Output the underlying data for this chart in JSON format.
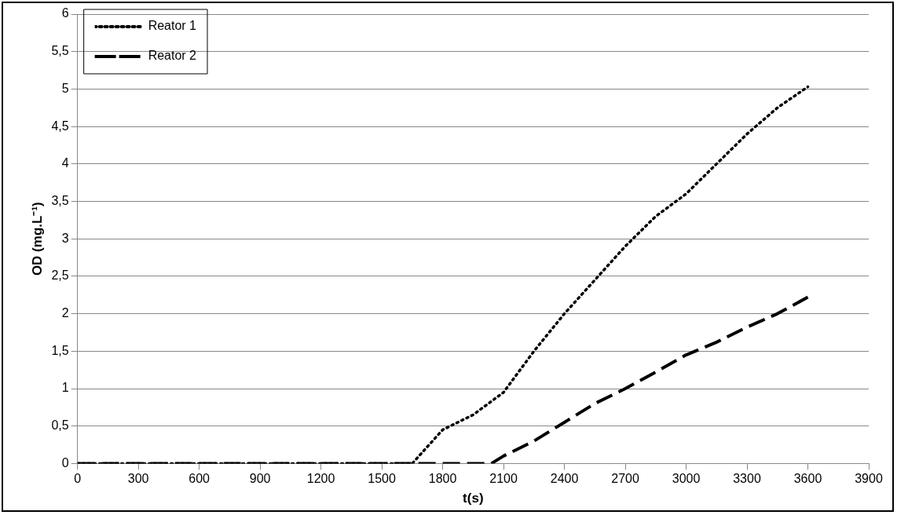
{
  "chart_data": {
    "type": "line",
    "xlabel": "t(s)",
    "ylabel": "OD (mg.L⁻¹)",
    "xlim": [
      0,
      3900
    ],
    "xticks": [
      0,
      300,
      600,
      900,
      1200,
      1500,
      1800,
      2100,
      2400,
      2700,
      3000,
      3300,
      3600,
      3900
    ],
    "ylim": [
      0,
      6
    ],
    "yticks": [
      0,
      {
        "value": 0.5,
        "label": "0,5"
      },
      1,
      {
        "value": 1.5,
        "label": "1,5"
      },
      2,
      {
        "value": 2.5,
        "label": "2,5"
      },
      3,
      {
        "value": 3.5,
        "label": "3,5"
      },
      4,
      {
        "value": 4.5,
        "label": "4,5"
      },
      5,
      {
        "value": 5.5,
        "label": "5,5"
      },
      6
    ],
    "grid": "y",
    "legend": "top left",
    "marker": "none",
    "series": [
      {
        "name": "Reator 1",
        "color": "#000000",
        "line_style": "dotted",
        "x": [
          0,
          1650,
          1800,
          1950,
          2100,
          2250,
          2400,
          2550,
          2700,
          2850,
          3000,
          3150,
          3300,
          3450,
          3600
        ],
        "values": [
          0,
          0,
          0.45,
          0.65,
          0.95,
          1.5,
          2.0,
          2.45,
          2.9,
          3.3,
          3.6,
          4.0,
          4.4,
          4.75,
          5.03
        ]
      },
      {
        "name": "Reator 2",
        "color": "#000000",
        "line_style": "dashed",
        "x": [
          0,
          2040,
          2100,
          2250,
          2400,
          2550,
          2700,
          2850,
          3000,
          3150,
          3300,
          3450,
          3600
        ],
        "values": [
          0,
          0,
          0.1,
          0.3,
          0.55,
          0.8,
          1.0,
          1.22,
          1.45,
          1.62,
          1.82,
          2.0,
          2.22
        ]
      }
    ]
  }
}
